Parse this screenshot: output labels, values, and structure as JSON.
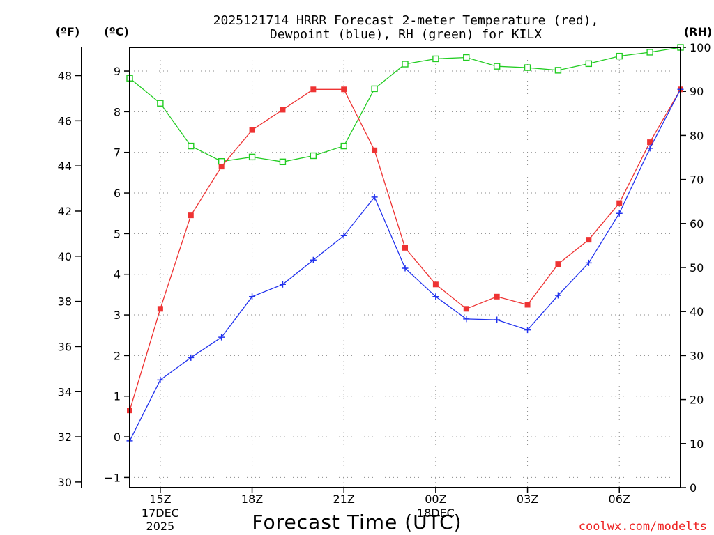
{
  "chart_data": {
    "type": "line",
    "title": "2025121714 HRRR Forecast 2-meter Temperature (red),",
    "subtitle": "Dewpoint (blue), RH (green) for KILX",
    "xlabel": "Forecast Time (UTC)",
    "credit": "coolwx.com/modelts",
    "axes": {
      "left_f": {
        "unit_label": "(ºF)",
        "ylim": [
          29.75,
          49.25
        ],
        "ticks": [
          30,
          32,
          34,
          36,
          38,
          40,
          42,
          44,
          46,
          48
        ]
      },
      "left_c": {
        "unit_label": "(ºC)",
        "ylim": [
          -1.25,
          9.5833
        ],
        "ticks": [
          -1,
          0,
          1,
          2,
          3,
          4,
          5,
          6,
          7,
          8,
          9
        ]
      },
      "right_rh": {
        "unit_label": "(RH)",
        "ylim": [
          0,
          100
        ],
        "ticks": [
          0,
          10,
          20,
          30,
          40,
          50,
          60,
          70,
          80,
          90,
          100
        ]
      }
    },
    "x": {
      "range_hours": [
        14,
        32
      ],
      "tick_hours": [
        15,
        18,
        21,
        24,
        27,
        30
      ],
      "tick_labels": [
        "15Z",
        "18Z",
        "21Z",
        "00Z",
        "03Z",
        "06Z"
      ],
      "date_labels": [
        {
          "hour": 15,
          "lines": [
            "17DEC",
            "2025"
          ]
        },
        {
          "hour": 24,
          "lines": [
            "18DEC"
          ]
        }
      ],
      "grid": true
    },
    "hours": [
      14,
      15,
      16,
      17,
      18,
      19,
      20,
      21,
      22,
      23,
      24,
      25,
      26,
      27,
      28,
      29,
      30,
      31,
      32
    ],
    "series": [
      {
        "name": "Temperature",
        "color": "#ee3333",
        "marker": "filled-square",
        "unit": "C",
        "values": [
          0.65,
          3.15,
          5.45,
          6.65,
          7.55,
          8.05,
          8.55,
          8.55,
          7.05,
          4.65,
          3.75,
          3.15,
          3.45,
          3.25,
          4.25,
          4.85,
          5.75,
          7.25,
          8.55
        ]
      },
      {
        "name": "Dewpoint",
        "color": "#2233ee",
        "marker": "plus",
        "unit": "C",
        "values": [
          -0.1,
          1.4,
          1.95,
          2.45,
          3.45,
          3.75,
          4.35,
          4.95,
          5.9,
          4.15,
          3.45,
          2.9,
          2.88,
          2.63,
          3.48,
          4.28,
          5.5,
          7.1,
          8.55
        ]
      },
      {
        "name": "RH",
        "color": "#22cc22",
        "marker": "open-square",
        "unit": "%",
        "values": [
          93.0,
          87.3,
          77.6,
          74.1,
          75.1,
          74.0,
          75.4,
          77.6,
          90.6,
          96.2,
          97.4,
          97.7,
          95.7,
          95.4,
          94.8,
          96.3,
          98.0,
          98.9,
          100.0
        ]
      }
    ]
  }
}
